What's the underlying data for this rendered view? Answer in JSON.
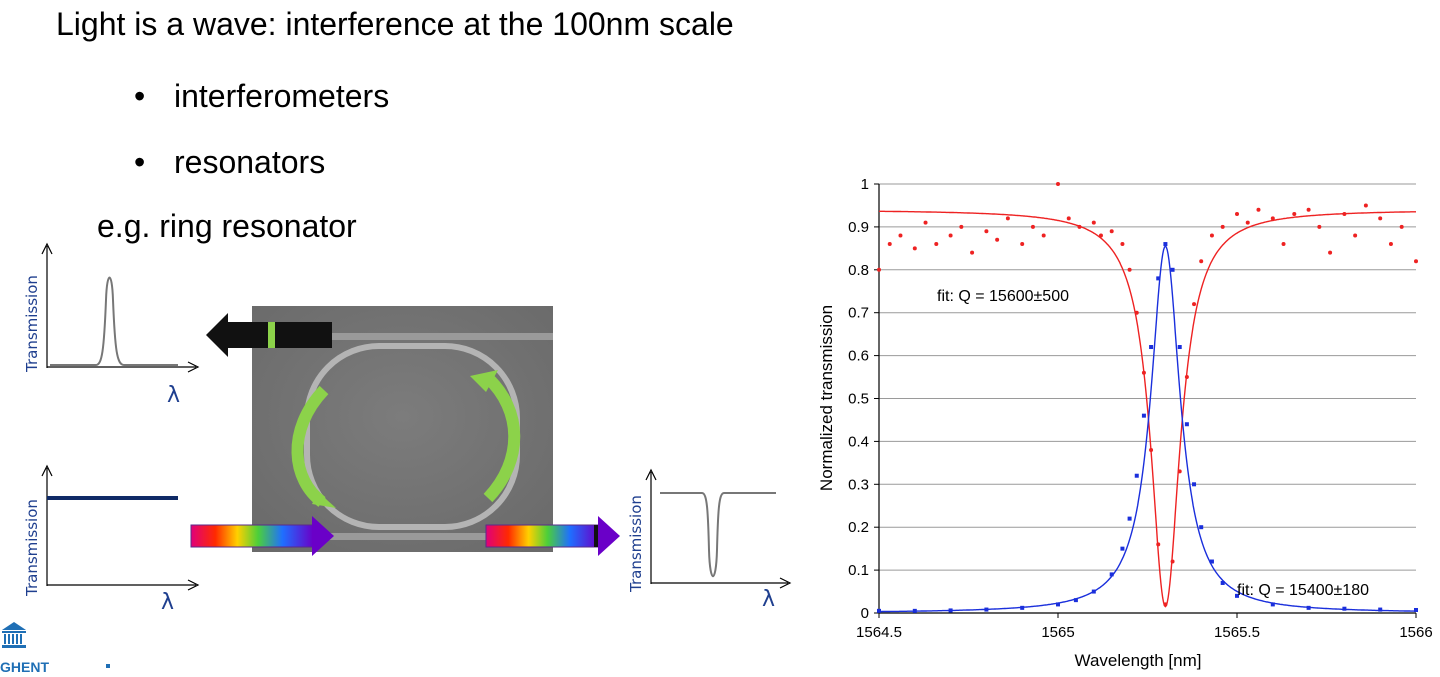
{
  "slide": {
    "title": "Light is a wave: interference at the 100nm scale",
    "bullets": [
      "interferometers",
      "resonators"
    ],
    "bullet_symbol": "•",
    "example": "e.g. ring resonator"
  },
  "sketches": {
    "ylabel": "Transmission",
    "xlabel": "λ"
  },
  "logo": {
    "text": "GHENT"
  },
  "colors": {
    "measured_red": "#ee2222",
    "measured_blue": "#1a2fdc",
    "grid": "#9a9a9a",
    "sketch_axis_label": "#1f3f8f",
    "arrow_green": "#8cd24a"
  },
  "chart_data": {
    "type": "scatter",
    "xlabel": "Wavelength [nm]",
    "ylabel": "Normalized transmission",
    "xlim": [
      1564.5,
      1566
    ],
    "ylim": [
      0,
      1
    ],
    "x_ticks": [
      "1564.5",
      "1565",
      "1565.5",
      "1566"
    ],
    "y_ticks": [
      "0",
      "0.1",
      "0.2",
      "0.3",
      "0.4",
      "0.5",
      "0.6",
      "0.7",
      "0.8",
      "0.9",
      "1"
    ],
    "grid": "horizontal",
    "annotations": [
      "fit: Q = 15600±500",
      "fit: Q = 15400±180"
    ],
    "series": [
      {
        "color": "#ee2222",
        "fit": {
          "shape": "dip",
          "center": 1565.3,
          "fwhm": 0.1,
          "baseline": 0.94,
          "min": 0.015
        },
        "points": [
          [
            1564.5,
            0.8
          ],
          [
            1564.53,
            0.86
          ],
          [
            1564.56,
            0.88
          ],
          [
            1564.6,
            0.85
          ],
          [
            1564.63,
            0.91
          ],
          [
            1564.66,
            0.86
          ],
          [
            1564.7,
            0.88
          ],
          [
            1564.73,
            0.9
          ],
          [
            1564.76,
            0.84
          ],
          [
            1564.8,
            0.89
          ],
          [
            1564.83,
            0.87
          ],
          [
            1564.86,
            0.92
          ],
          [
            1564.9,
            0.86
          ],
          [
            1564.93,
            0.9
          ],
          [
            1564.96,
            0.88
          ],
          [
            1565.0,
            1.0
          ],
          [
            1565.03,
            0.92
          ],
          [
            1565.06,
            0.9
          ],
          [
            1565.1,
            0.91
          ],
          [
            1565.12,
            0.88
          ],
          [
            1565.15,
            0.89
          ],
          [
            1565.18,
            0.86
          ],
          [
            1565.2,
            0.8
          ],
          [
            1565.22,
            0.7
          ],
          [
            1565.24,
            0.56
          ],
          [
            1565.26,
            0.38
          ],
          [
            1565.28,
            0.16
          ],
          [
            1565.3,
            0.02
          ],
          [
            1565.32,
            0.12
          ],
          [
            1565.34,
            0.33
          ],
          [
            1565.36,
            0.55
          ],
          [
            1565.38,
            0.72
          ],
          [
            1565.4,
            0.82
          ],
          [
            1565.43,
            0.88
          ],
          [
            1565.46,
            0.9
          ],
          [
            1565.5,
            0.93
          ],
          [
            1565.53,
            0.91
          ],
          [
            1565.56,
            0.94
          ],
          [
            1565.6,
            0.92
          ],
          [
            1565.63,
            0.86
          ],
          [
            1565.66,
            0.93
          ],
          [
            1565.7,
            0.94
          ],
          [
            1565.73,
            0.9
          ],
          [
            1565.76,
            0.84
          ],
          [
            1565.8,
            0.93
          ],
          [
            1565.83,
            0.88
          ],
          [
            1565.86,
            0.95
          ],
          [
            1565.9,
            0.92
          ],
          [
            1565.93,
            0.86
          ],
          [
            1565.96,
            0.9
          ],
          [
            1566.0,
            0.82
          ]
        ]
      },
      {
        "color": "#1a2fdc",
        "fit": {
          "shape": "peak",
          "center": 1565.3,
          "fwhm": 0.1,
          "baseline": 0.0,
          "max": 0.855
        },
        "points": [
          [
            1564.5,
            0.005
          ],
          [
            1564.6,
            0.005
          ],
          [
            1564.7,
            0.006
          ],
          [
            1564.8,
            0.008
          ],
          [
            1564.9,
            0.012
          ],
          [
            1565.0,
            0.02
          ],
          [
            1565.05,
            0.03
          ],
          [
            1565.1,
            0.05
          ],
          [
            1565.15,
            0.09
          ],
          [
            1565.18,
            0.15
          ],
          [
            1565.2,
            0.22
          ],
          [
            1565.22,
            0.32
          ],
          [
            1565.24,
            0.46
          ],
          [
            1565.26,
            0.62
          ],
          [
            1565.28,
            0.78
          ],
          [
            1565.3,
            0.86
          ],
          [
            1565.32,
            0.8
          ],
          [
            1565.34,
            0.62
          ],
          [
            1565.36,
            0.44
          ],
          [
            1565.38,
            0.3
          ],
          [
            1565.4,
            0.2
          ],
          [
            1565.43,
            0.12
          ],
          [
            1565.46,
            0.07
          ],
          [
            1565.5,
            0.04
          ],
          [
            1565.6,
            0.02
          ],
          [
            1565.7,
            0.012
          ],
          [
            1565.8,
            0.01
          ],
          [
            1565.9,
            0.008
          ],
          [
            1566.0,
            0.007
          ]
        ]
      }
    ]
  }
}
